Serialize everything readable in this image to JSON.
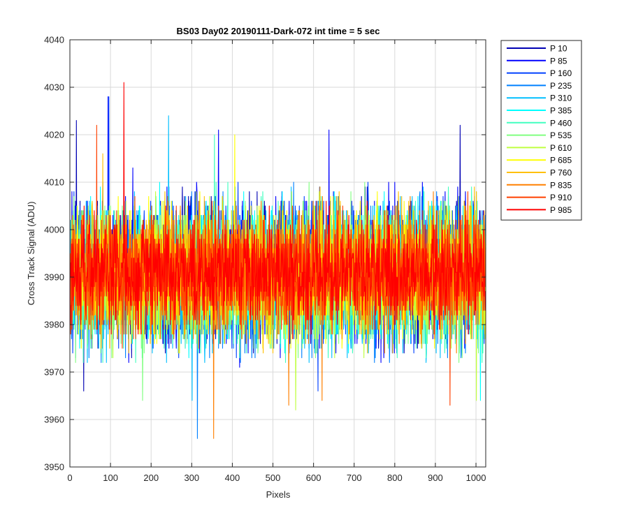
{
  "chart_data": {
    "type": "line",
    "title": "BS03 Day02 20190111-Dark-072 int time = 5 sec",
    "xlabel": "Pixels",
    "ylabel": "Cross Track Signal (ADU)",
    "xlim": [
      0,
      1024
    ],
    "ylim": [
      3950,
      4040
    ],
    "xticks": [
      "0",
      "100",
      "200",
      "300",
      "400",
      "500",
      "600",
      "700",
      "800",
      "900",
      "1000"
    ],
    "yticks": [
      "3950",
      "3960",
      "3970",
      "3980",
      "3990",
      "4000",
      "4010",
      "4020",
      "4030",
      "4040"
    ],
    "grid": true,
    "legend_location": "outside-right",
    "points_per_series": 1024,
    "series": [
      {
        "name": "P 10",
        "color": "#0000b3",
        "mean": 3991,
        "range": [
          3972,
          4016
        ],
        "peaks": [
          [
            15,
            4023
          ],
          [
            33,
            3966
          ],
          [
            960,
            4022
          ]
        ]
      },
      {
        "name": "P 85",
        "color": "#0000ff",
        "mean": 3991,
        "range": [
          3971,
          4016
        ],
        "peaks": [
          [
            93,
            4028
          ],
          [
            365,
            4021
          ],
          [
            637,
            4021
          ]
        ]
      },
      {
        "name": "P 160",
        "color": "#0040ff",
        "mean": 3991,
        "range": [
          3973,
          4015
        ],
        "peaks": [
          [
            95,
            4028
          ],
          [
            610,
            3966
          ]
        ]
      },
      {
        "name": "P 235",
        "color": "#0080ff",
        "mean": 3990,
        "range": [
          3972,
          4016
        ],
        "peaks": [
          [
            313,
            3956
          ]
        ]
      },
      {
        "name": "P 310",
        "color": "#00bfff",
        "mean": 3990,
        "range": [
          3972,
          4016
        ],
        "peaks": [
          [
            242,
            4024
          ],
          [
            300,
            3964
          ]
        ]
      },
      {
        "name": "P 385",
        "color": "#00ffff",
        "mean": 3991,
        "range": [
          3973,
          4015
        ],
        "peaks": [
          [
            1010,
            3964
          ]
        ]
      },
      {
        "name": "P 460",
        "color": "#40ffbf",
        "mean": 3990,
        "range": [
          3972,
          4016
        ],
        "peaks": [
          [
            355,
            4020
          ]
        ]
      },
      {
        "name": "P 535",
        "color": "#80ff80",
        "mean": 3990,
        "range": [
          3972,
          4015
        ],
        "peaks": [
          [
            178,
            3964
          ]
        ]
      },
      {
        "name": "P 610",
        "color": "#bfff40",
        "mean": 3991,
        "range": [
          3973,
          4015
        ],
        "peaks": [
          [
            555,
            3962
          ],
          [
            1000,
            3964
          ]
        ]
      },
      {
        "name": "P 685",
        "color": "#ffff00",
        "mean": 3991,
        "range": [
          3974,
          4014
        ],
        "peaks": [
          [
            405,
            4020
          ]
        ]
      },
      {
        "name": "P 760",
        "color": "#ffbf00",
        "mean": 3991,
        "range": [
          3974,
          4014
        ],
        "peaks": [
          [
            80,
            4016
          ]
        ]
      },
      {
        "name": "P 835",
        "color": "#ff8000",
        "mean": 3991,
        "range": [
          3974,
          4013
        ],
        "peaks": [
          [
            353,
            3956
          ],
          [
            620,
            3964
          ],
          [
            538,
            3963
          ]
        ]
      },
      {
        "name": "P 910",
        "color": "#ff4000",
        "mean": 3991,
        "range": [
          3975,
          4012
        ],
        "peaks": [
          [
            65,
            4022
          ],
          [
            935,
            3963
          ]
        ]
      },
      {
        "name": "P 985",
        "color": "#ff0000",
        "mean": 3991,
        "range": [
          3976,
          4010
        ],
        "peaks": [
          [
            132,
            4031
          ]
        ]
      }
    ]
  }
}
